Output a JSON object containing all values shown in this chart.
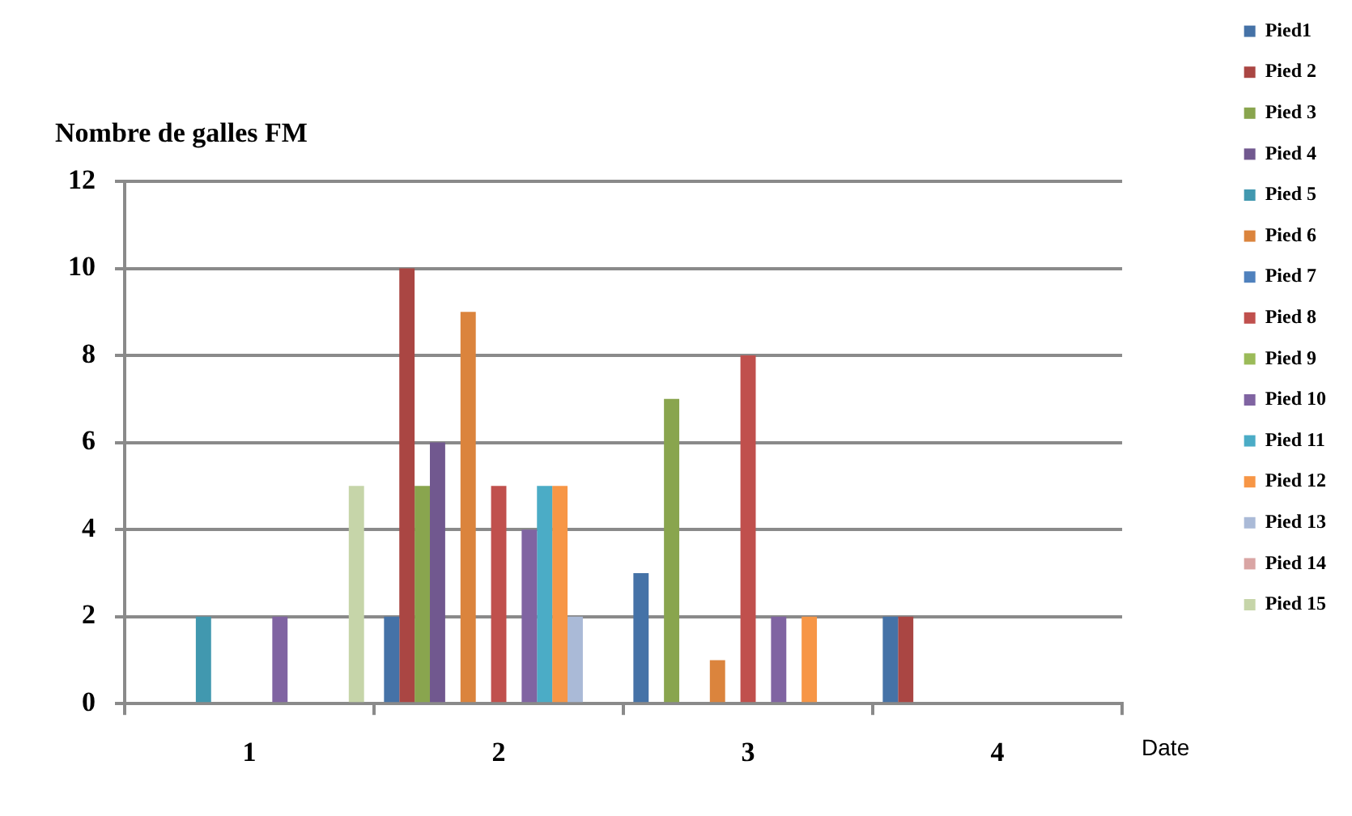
{
  "chart_data": {
    "type": "bar",
    "ylabel": "Nombre de galles FM",
    "xlabel": "Date",
    "categories": [
      "1",
      "2",
      "3",
      "4"
    ],
    "ylim": [
      0,
      12
    ],
    "yticks": [
      0,
      2,
      4,
      6,
      8,
      10,
      12
    ],
    "grid": "y",
    "legend": "right",
    "series": [
      {
        "name": "Pied1",
        "color": "#4572a7",
        "values": [
          0,
          2,
          3,
          2
        ]
      },
      {
        "name": "Pied 2",
        "color": "#aa4643",
        "values": [
          0,
          10,
          0,
          2
        ]
      },
      {
        "name": "Pied 3",
        "color": "#89a54e",
        "values": [
          0,
          5,
          7,
          0
        ]
      },
      {
        "name": "Pied 4",
        "color": "#71588f",
        "values": [
          0,
          6,
          0,
          0
        ]
      },
      {
        "name": "Pied 5",
        "color": "#4198af",
        "values": [
          2,
          0,
          0,
          0
        ]
      },
      {
        "name": "Pied 6",
        "color": "#db843d",
        "values": [
          0,
          9,
          1,
          0
        ]
      },
      {
        "name": "Pied 7",
        "color": "#4f81bd",
        "values": [
          0,
          0,
          0,
          0
        ]
      },
      {
        "name": "Pied 8",
        "color": "#c0504d",
        "values": [
          0,
          5,
          8,
          0
        ]
      },
      {
        "name": "Pied 9",
        "color": "#9bbb59",
        "values": [
          0,
          0,
          0,
          0
        ]
      },
      {
        "name": "Pied 10",
        "color": "#8064a2",
        "values": [
          2,
          4,
          2,
          0
        ]
      },
      {
        "name": "Pied 11",
        "color": "#4bacc6",
        "values": [
          0,
          5,
          0,
          0
        ]
      },
      {
        "name": "Pied 12",
        "color": "#f79646",
        "values": [
          0,
          5,
          2,
          0
        ]
      },
      {
        "name": "Pied 13",
        "color": "#aabad7",
        "values": [
          0,
          2,
          0,
          0
        ]
      },
      {
        "name": "Pied 14",
        "color": "#d9a5a4",
        "values": [
          0,
          0,
          0,
          0
        ]
      },
      {
        "name": "Pied 15",
        "color": "#c6d5a9",
        "values": [
          5,
          0,
          0,
          0
        ]
      }
    ]
  }
}
